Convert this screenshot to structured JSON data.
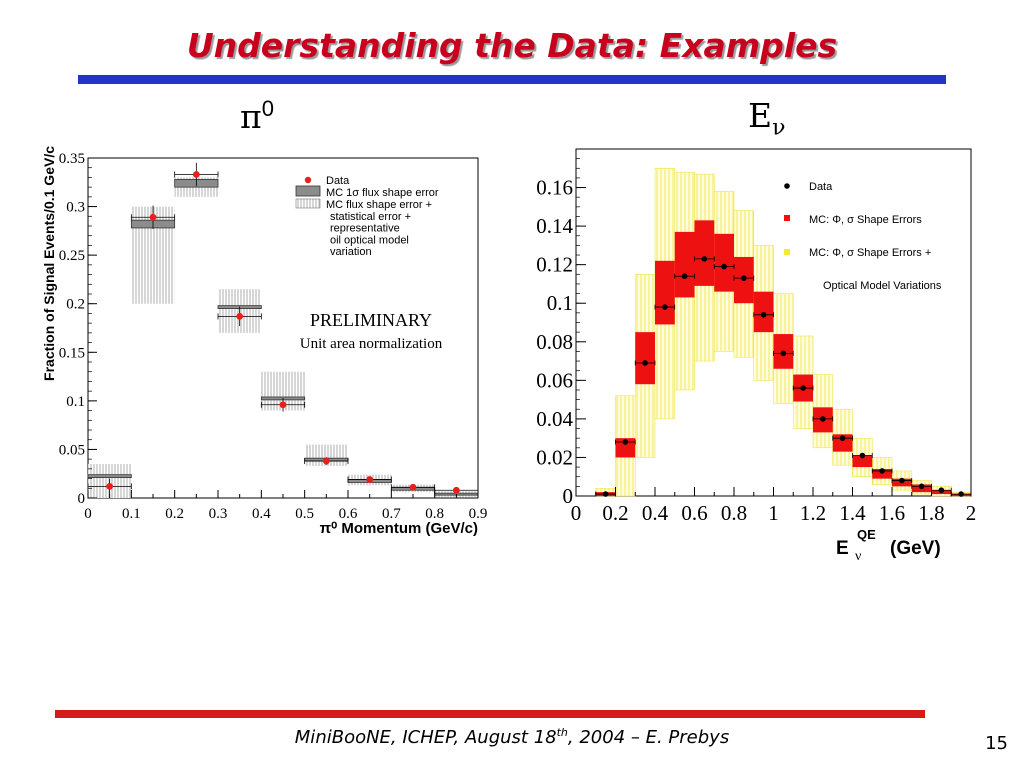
{
  "slide": {
    "title": "Understanding the Data: Examples",
    "footer": {
      "pre": "MiniBooNE, ICHEP, August 18",
      "sup": "th",
      "post": ", 2004 – E. Prebys"
    },
    "page_number": "15",
    "left_symbol": {
      "base": "π",
      "sup": "0"
    },
    "right_symbol": {
      "base": "E",
      "sub": "ν"
    }
  },
  "chart_data": [
    {
      "type": "bar",
      "ylabel": "Fraction of Signal Events/0.1 GeV/c",
      "xlabel": "π⁰ Momentum (GeV/c)",
      "xlim": [
        0,
        0.9
      ],
      "ylim": [
        0,
        0.35
      ],
      "x_ticks": [
        "0",
        "0.1",
        "0.2",
        "0.3",
        "0.4",
        "0.5",
        "0.6",
        "0.7",
        "0.8",
        "0.9"
      ],
      "y_ticks": [
        "0",
        "0.05",
        "0.1",
        "0.15",
        "0.2",
        "0.25",
        "0.3",
        "0.35"
      ],
      "annotations": [
        "PRELIMINARY",
        "Unit area normalization"
      ],
      "legend": {
        "placement": "top-right",
        "entries": [
          {
            "key": "data",
            "label": "Data"
          },
          {
            "key": "shape",
            "label": "MC 1σ flux shape error"
          },
          {
            "key": "stat",
            "lines": [
              "MC flux shape error +",
              "statistical error +",
              "representative",
              "oil optical model",
              "variation"
            ]
          }
        ]
      },
      "bin_centers": [
        0.05,
        0.15,
        0.25,
        0.35,
        0.45,
        0.55,
        0.65,
        0.75,
        0.85
      ],
      "series": [
        {
          "name": "Data",
          "values": [
            0.012,
            0.289,
            0.333,
            0.187,
            0.096,
            0.038,
            0.019,
            0.011,
            0.008
          ],
          "yerr": [
            0.008,
            0.012,
            0.012,
            0.01,
            0.007,
            0.004,
            0.003,
            0.002,
            0.002
          ]
        },
        {
          "name": "MC 1σ flux shape error",
          "low": [
            0.021,
            0.278,
            0.32,
            0.195,
            0.101,
            0.038,
            0.016,
            0.008,
            0.003
          ],
          "high": [
            0.024,
            0.286,
            0.328,
            0.198,
            0.104,
            0.041,
            0.019,
            0.011,
            0.005
          ]
        },
        {
          "name": "MC flux shape error + statistical error + representative oil optical model variation",
          "low": [
            0.0,
            0.2,
            0.31,
            0.17,
            0.09,
            0.033,
            0.013,
            0.006,
            0.001
          ],
          "high": [
            0.035,
            0.3,
            0.33,
            0.215,
            0.13,
            0.055,
            0.024,
            0.014,
            0.007
          ]
        }
      ]
    },
    {
      "type": "bar",
      "xlabel": "E",
      "xlabel_sup": "QE",
      "xlabel_sub": "ν",
      "xlabel_unit": "(GeV)",
      "xlim": [
        0,
        2
      ],
      "ylim": [
        0,
        0.18
      ],
      "x_ticks": [
        "0",
        "0.2",
        "0.4",
        "0.6",
        "0.8",
        "1",
        "1.2",
        "1.4",
        "1.6",
        "1.8",
        "2"
      ],
      "y_ticks": [
        "0",
        "0.02",
        "0.04",
        "0.06",
        "0.08",
        "0.1",
        "0.12",
        "0.14",
        "0.16"
      ],
      "legend": {
        "placement": "top-right",
        "entries": [
          {
            "key": "data",
            "label": "Data"
          },
          {
            "key": "red",
            "label": "MC:  Φ, σ Shape Errors"
          },
          {
            "key": "yellow",
            "label": "MC:  Φ, σ Shape Errors +"
          },
          {
            "key": "yellow2",
            "label": "Optical Model Variations"
          }
        ]
      },
      "bin_centers": [
        0.15,
        0.25,
        0.35,
        0.45,
        0.55,
        0.65,
        0.75,
        0.85,
        0.95,
        1.05,
        1.15,
        1.25,
        1.35,
        1.45,
        1.55,
        1.65,
        1.75,
        1.85,
        1.95
      ],
      "series": [
        {
          "name": "Data",
          "values": [
            0.001,
            0.028,
            0.069,
            0.098,
            0.114,
            0.123,
            0.119,
            0.113,
            0.094,
            0.074,
            0.056,
            0.04,
            0.03,
            0.021,
            0.013,
            0.008,
            0.005,
            0.003,
            0.001
          ]
        },
        {
          "name": "MC:  Φ, σ Shape Errors",
          "low": [
            0.0,
            0.02,
            0.058,
            0.089,
            0.103,
            0.109,
            0.106,
            0.1,
            0.085,
            0.066,
            0.049,
            0.033,
            0.023,
            0.015,
            0.009,
            0.005,
            0.002,
            0.001,
            0.0
          ],
          "high": [
            0.002,
            0.03,
            0.085,
            0.122,
            0.137,
            0.143,
            0.136,
            0.124,
            0.106,
            0.084,
            0.063,
            0.046,
            0.032,
            0.021,
            0.014,
            0.009,
            0.006,
            0.003,
            0.001
          ]
        },
        {
          "name": "MC:  Φ, σ Shape Errors + Optical Model Variations",
          "low": [
            0.0,
            0.0,
            0.02,
            0.04,
            0.055,
            0.07,
            0.075,
            0.072,
            0.06,
            0.048,
            0.035,
            0.025,
            0.016,
            0.01,
            0.006,
            0.003,
            0.001,
            0.0,
            0.0
          ],
          "high": [
            0.004,
            0.052,
            0.115,
            0.17,
            0.168,
            0.167,
            0.158,
            0.148,
            0.13,
            0.105,
            0.083,
            0.063,
            0.045,
            0.03,
            0.02,
            0.013,
            0.008,
            0.005,
            0.002
          ]
        }
      ]
    }
  ]
}
